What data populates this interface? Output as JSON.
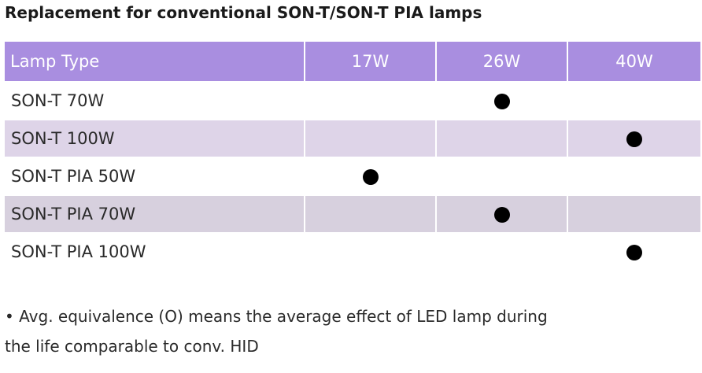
{
  "title": "Replacement for conventional SON-T/SON-T PIA lamps",
  "table": {
    "headers": [
      "Lamp Type",
      "17W",
      "26W",
      "40W"
    ],
    "rows": [
      {
        "type": "SON-T 70W",
        "w17": false,
        "w26": true,
        "w40": false
      },
      {
        "type": "SON-T 100W",
        "w17": false,
        "w26": false,
        "w40": true
      },
      {
        "type": "SON-T PIA 50W",
        "w17": true,
        "w26": false,
        "w40": false
      },
      {
        "type": "SON-T PIA 70W",
        "w17": false,
        "w26": true,
        "w40": false
      },
      {
        "type": "SON-T PIA 100W",
        "w17": false,
        "w26": false,
        "w40": true
      }
    ],
    "mark_icon": "filled-circle-icon"
  },
  "note": {
    "line1": "• Avg. equivalence (O) means the average effect of LED lamp during",
    "line2": "the life comparable to conv. HID"
  },
  "colors": {
    "header_bg": "#a98ee0",
    "header_text": "#ffffff",
    "row_shade": "#ded4e8",
    "row_shade_alt": "#d7d0de",
    "mark": "#000000"
  }
}
